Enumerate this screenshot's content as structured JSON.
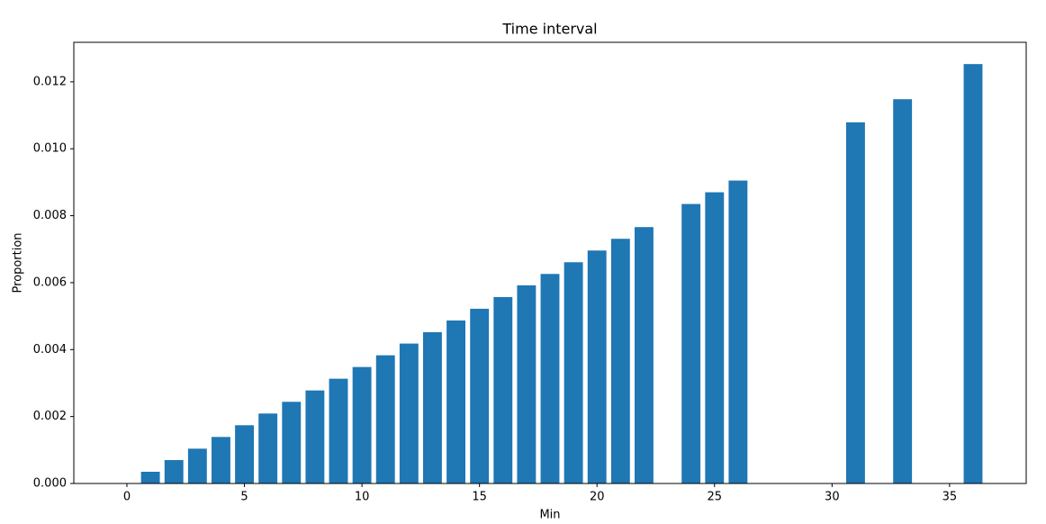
{
  "chart_data": {
    "type": "bar",
    "title": "Time interval",
    "x_label": "Min",
    "y_label": "Proportion",
    "x": [
      1,
      2,
      3,
      4,
      5,
      6,
      7,
      8,
      9,
      10,
      11,
      12,
      13,
      14,
      15,
      16,
      17,
      18,
      19,
      20,
      21,
      22,
      24,
      25,
      26,
      31,
      33,
      36
    ],
    "values": [
      0.00035,
      0.0007,
      0.00104,
      0.00139,
      0.00174,
      0.00209,
      0.00244,
      0.00278,
      0.00313,
      0.00348,
      0.00383,
      0.00418,
      0.00452,
      0.00487,
      0.00522,
      0.00557,
      0.00592,
      0.00626,
      0.00661,
      0.00696,
      0.00731,
      0.00766,
      0.00835,
      0.0087,
      0.00905,
      0.01079,
      0.01148,
      0.01253
    ],
    "color": "#1f77b4",
    "xlim": [
      -2.26,
      38.26
    ],
    "xticks": [
      0,
      5,
      10,
      15,
      20,
      25,
      30,
      35
    ],
    "ylim": [
      0,
      0.01318
    ],
    "yticks": [
      {
        "value": 0,
        "label": "0.000"
      },
      {
        "value": 0.002,
        "label": "0.002"
      },
      {
        "value": 0.004,
        "label": "0.004"
      },
      {
        "value": 0.006,
        "label": "0.006"
      },
      {
        "value": 0.008,
        "label": "0.008"
      },
      {
        "value": 0.01,
        "label": "0.010"
      },
      {
        "value": 0.012,
        "label": "0.012"
      }
    ],
    "grid": false
  }
}
